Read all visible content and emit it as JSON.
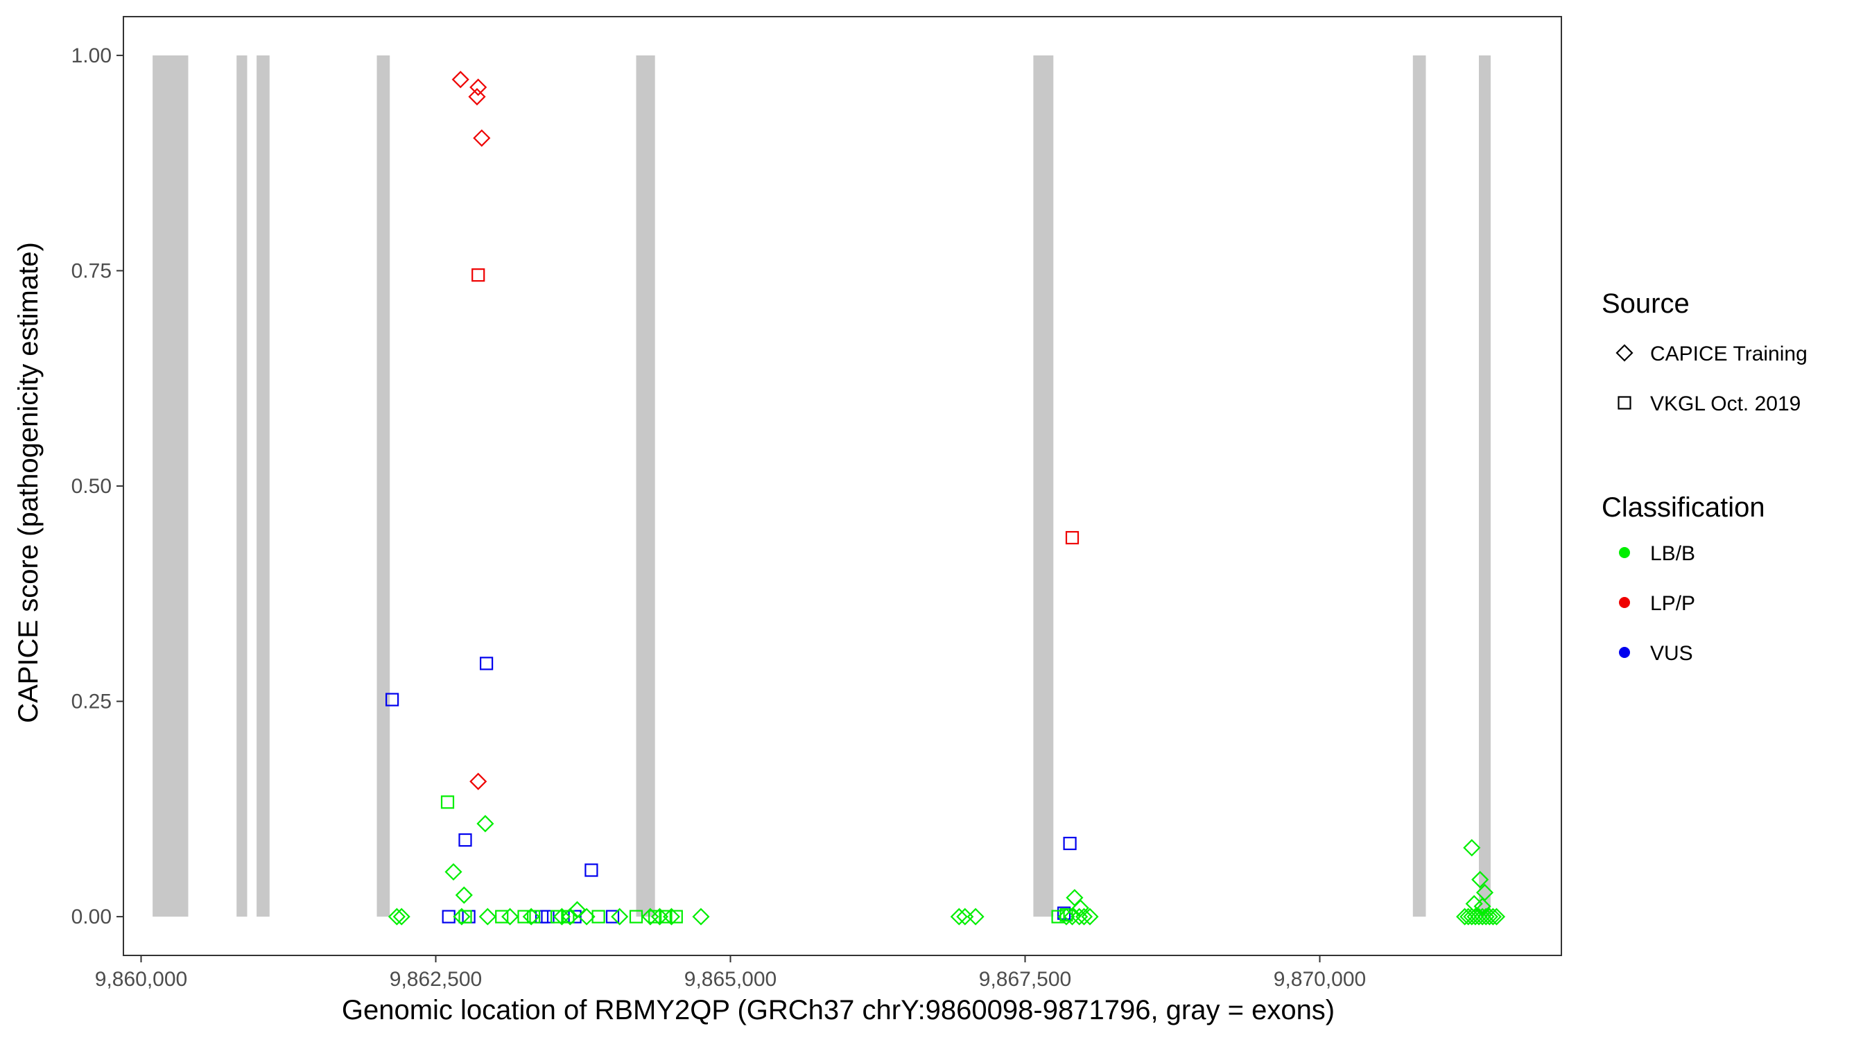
{
  "chart_data": {
    "type": "scatter",
    "title": "",
    "xlabel": "Genomic location of RBMY2QP (GRCh37 chrY:9860098-9871796, gray = exons)",
    "ylabel": "CAPICE score (pathogenicity estimate)",
    "xlim": [
      9859850,
      9872050
    ],
    "ylim": [
      -0.045,
      1.045
    ],
    "x_ticks": [
      9860000,
      9862500,
      9865000,
      9867500,
      9870000
    ],
    "x_tick_labels": [
      "9,860,000",
      "9,862,500",
      "9,865,000",
      "9,867,500",
      "9,870,000"
    ],
    "y_ticks": [
      0,
      0.25,
      0.5,
      0.75,
      1.0
    ],
    "y_tick_labels": [
      "0.00",
      "0.25",
      "0.50",
      "0.75",
      "1.00"
    ],
    "grid": false,
    "exons": [
      [
        9860098,
        9860400
      ],
      [
        9860810,
        9860900
      ],
      [
        9860980,
        9861090
      ],
      [
        9862000,
        9862110
      ],
      [
        9864200,
        9864360
      ],
      [
        9867570,
        9867740
      ],
      [
        9870790,
        9870900
      ],
      [
        9871350,
        9871450
      ]
    ],
    "legend": {
      "placement": "right",
      "source_title": "Source",
      "source_items": [
        {
          "label": "CAPICE Training",
          "shape": "diamond"
        },
        {
          "label": "VKGL Oct. 2019",
          "shape": "square"
        }
      ],
      "class_title": "Classification",
      "class_items": [
        {
          "label": "LB/B",
          "color": "#00ee00"
        },
        {
          "label": "LP/P",
          "color": "#ee0000"
        },
        {
          "label": "VUS",
          "color": "#0000ee"
        }
      ]
    },
    "series": [
      {
        "source": "CAPICE Training",
        "classification": "LP/P",
        "points": [
          [
            9862710,
            0.972
          ],
          [
            9862860,
            0.963
          ],
          [
            9862850,
            0.952
          ],
          [
            9862890,
            0.904
          ],
          [
            9862860,
            0.157
          ]
        ]
      },
      {
        "source": "VKGL Oct. 2019",
        "classification": "LP/P",
        "points": [
          [
            9862860,
            0.745
          ],
          [
            9867900,
            0.44
          ]
        ]
      },
      {
        "source": "VKGL Oct. 2019",
        "classification": "VUS",
        "points": [
          [
            9862130,
            0.252
          ],
          [
            9862930,
            0.294
          ],
          [
            9862750,
            0.089
          ],
          [
            9863820,
            0.054
          ],
          [
            9867880,
            0.085
          ],
          [
            9862610,
            0.0
          ],
          [
            9862780,
            0.0
          ],
          [
            9863400,
            0.0
          ],
          [
            9863450,
            0.0
          ],
          [
            9863680,
            0.0
          ],
          [
            9864000,
            0.0
          ],
          [
            9867830,
            0.004
          ]
        ]
      },
      {
        "source": "VKGL Oct. 2019",
        "classification": "LB/B",
        "points": [
          [
            9862600,
            0.133
          ],
          [
            9862750,
            0.0
          ],
          [
            9863060,
            0.0
          ],
          [
            9863250,
            0.0
          ],
          [
            9863330,
            0.0
          ],
          [
            9863530,
            0.0
          ],
          [
            9863620,
            0.0
          ],
          [
            9863880,
            0.0
          ],
          [
            9864200,
            0.0
          ],
          [
            9864360,
            0.0
          ],
          [
            9864450,
            0.0
          ],
          [
            9864540,
            0.0
          ],
          [
            9867780,
            0.0
          ],
          [
            9867850,
            0.002
          ]
        ]
      },
      {
        "source": "CAPICE Training",
        "classification": "LB/B",
        "points": [
          [
            9862920,
            0.108
          ],
          [
            9862650,
            0.052
          ],
          [
            9862740,
            0.025
          ],
          [
            9863700,
            0.008
          ],
          [
            9867920,
            0.022
          ],
          [
            9867970,
            0.01
          ],
          [
            9871290,
            0.08
          ],
          [
            9871360,
            0.043
          ],
          [
            9871400,
            0.028
          ],
          [
            9871310,
            0.015
          ],
          [
            9871380,
            0.012
          ],
          [
            9862170,
            0.0
          ],
          [
            9862210,
            0.0
          ],
          [
            9862720,
            0.0
          ],
          [
            9862940,
            0.0
          ],
          [
            9863130,
            0.0
          ],
          [
            9863310,
            0.0
          ],
          [
            9863570,
            0.0
          ],
          [
            9863640,
            0.0
          ],
          [
            9863780,
            0.0
          ],
          [
            9864060,
            0.0
          ],
          [
            9864320,
            0.0
          ],
          [
            9864400,
            0.0
          ],
          [
            9864500,
            0.0
          ],
          [
            9864750,
            0.0
          ],
          [
            9866940,
            0.0
          ],
          [
            9866990,
            0.0
          ],
          [
            9867080,
            0.0
          ],
          [
            9867850,
            0.0
          ],
          [
            9867900,
            0.0
          ],
          [
            9867960,
            0.0
          ],
          [
            9868000,
            0.0
          ],
          [
            9868050,
            0.0
          ],
          [
            9871230,
            0.0
          ],
          [
            9871260,
            0.0
          ],
          [
            9871290,
            0.0
          ],
          [
            9871320,
            0.0
          ],
          [
            9871350,
            0.0
          ],
          [
            9871380,
            0.0
          ],
          [
            9871410,
            0.0
          ],
          [
            9871440,
            0.0
          ],
          [
            9871470,
            0.0
          ],
          [
            9871500,
            0.0
          ]
        ]
      }
    ]
  }
}
